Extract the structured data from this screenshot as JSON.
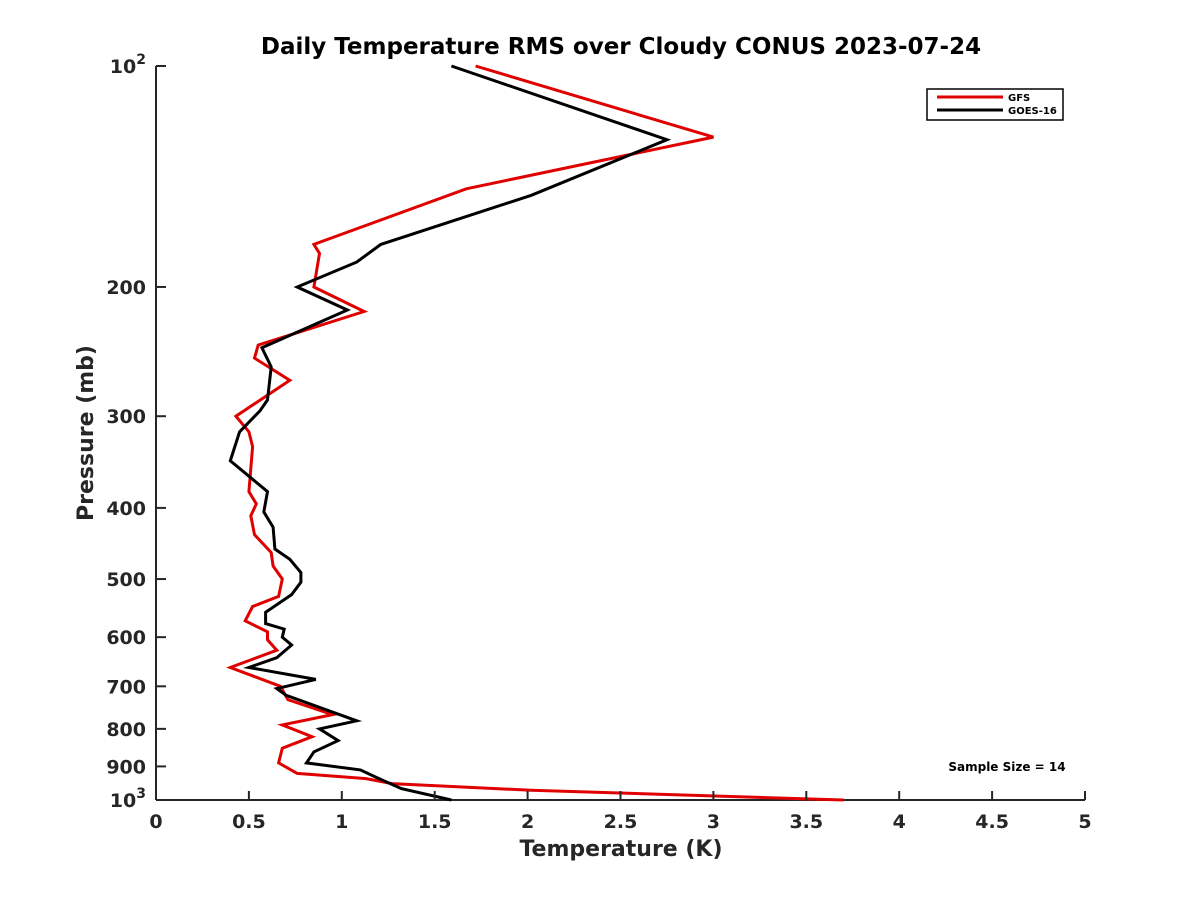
{
  "chart_data": {
    "type": "line",
    "title": "Daily Temperature RMS over Cloudy CONUS 2023-07-24",
    "xlabel": "Temperature (K)",
    "ylabel": "Pressure (mb)",
    "xlim": [
      0,
      5
    ],
    "ylim": [
      1000,
      100
    ],
    "yscale": "log",
    "y_reversed": true,
    "grid": false,
    "legend_position": "top-right",
    "x_ticks": [
      {
        "value": 0,
        "label": "0"
      },
      {
        "value": 0.5,
        "label": "0.5"
      },
      {
        "value": 1,
        "label": "1"
      },
      {
        "value": 1.5,
        "label": "1.5"
      },
      {
        "value": 2,
        "label": "2"
      },
      {
        "value": 2.5,
        "label": "2.5"
      },
      {
        "value": 3,
        "label": "3"
      },
      {
        "value": 3.5,
        "label": "3.5"
      },
      {
        "value": 4,
        "label": "4"
      },
      {
        "value": 4.5,
        "label": "4.5"
      },
      {
        "value": 5,
        "label": "5"
      }
    ],
    "y_ticks": [
      {
        "value": 100,
        "base": "10",
        "exp": "2"
      },
      {
        "value": 200,
        "label": "200"
      },
      {
        "value": 300,
        "label": "300"
      },
      {
        "value": 400,
        "label": "400"
      },
      {
        "value": 500,
        "label": "500"
      },
      {
        "value": 600,
        "label": "600"
      },
      {
        "value": 700,
        "label": "700"
      },
      {
        "value": 800,
        "label": "800"
      },
      {
        "value": 900,
        "label": "900"
      },
      {
        "value": 1000,
        "base": "10",
        "exp": "3"
      }
    ],
    "series": [
      {
        "name": "GFS",
        "color": "#e00000",
        "points": [
          {
            "x": 1.72,
            "y": 100
          },
          {
            "x": 3.0,
            "y": 125
          },
          {
            "x": 1.67,
            "y": 147
          },
          {
            "x": 0.85,
            "y": 175
          },
          {
            "x": 0.88,
            "y": 180
          },
          {
            "x": 0.85,
            "y": 200
          },
          {
            "x": 1.12,
            "y": 216
          },
          {
            "x": 0.55,
            "y": 240
          },
          {
            "x": 0.53,
            "y": 250
          },
          {
            "x": 0.72,
            "y": 268
          },
          {
            "x": 0.43,
            "y": 300
          },
          {
            "x": 0.5,
            "y": 315
          },
          {
            "x": 0.52,
            "y": 330
          },
          {
            "x": 0.5,
            "y": 380
          },
          {
            "x": 0.54,
            "y": 395
          },
          {
            "x": 0.51,
            "y": 410
          },
          {
            "x": 0.53,
            "y": 435
          },
          {
            "x": 0.62,
            "y": 460
          },
          {
            "x": 0.63,
            "y": 480
          },
          {
            "x": 0.68,
            "y": 500
          },
          {
            "x": 0.66,
            "y": 528
          },
          {
            "x": 0.52,
            "y": 545
          },
          {
            "x": 0.48,
            "y": 570
          },
          {
            "x": 0.6,
            "y": 590
          },
          {
            "x": 0.6,
            "y": 605
          },
          {
            "x": 0.65,
            "y": 625
          },
          {
            "x": 0.4,
            "y": 660
          },
          {
            "x": 0.67,
            "y": 700
          },
          {
            "x": 0.71,
            "y": 730
          },
          {
            "x": 0.95,
            "y": 765
          },
          {
            "x": 0.68,
            "y": 790
          },
          {
            "x": 0.84,
            "y": 820
          },
          {
            "x": 0.68,
            "y": 850
          },
          {
            "x": 0.66,
            "y": 890
          },
          {
            "x": 0.76,
            "y": 920
          },
          {
            "x": 1.13,
            "y": 935
          },
          {
            "x": 1.27,
            "y": 950
          },
          {
            "x": 2.02,
            "y": 970
          },
          {
            "x": 3.7,
            "y": 1000
          }
        ]
      },
      {
        "name": "GOES-16",
        "color": "#000000",
        "points": [
          {
            "x": 1.59,
            "y": 100
          },
          {
            "x": 2.75,
            "y": 126
          },
          {
            "x": 2.02,
            "y": 150
          },
          {
            "x": 1.21,
            "y": 175
          },
          {
            "x": 1.08,
            "y": 185
          },
          {
            "x": 0.76,
            "y": 200
          },
          {
            "x": 1.03,
            "y": 215
          },
          {
            "x": 0.57,
            "y": 242
          },
          {
            "x": 0.62,
            "y": 257
          },
          {
            "x": 0.6,
            "y": 285
          },
          {
            "x": 0.56,
            "y": 295
          },
          {
            "x": 0.45,
            "y": 315
          },
          {
            "x": 0.4,
            "y": 345
          },
          {
            "x": 0.6,
            "y": 380
          },
          {
            "x": 0.58,
            "y": 405
          },
          {
            "x": 0.63,
            "y": 425
          },
          {
            "x": 0.64,
            "y": 455
          },
          {
            "x": 0.72,
            "y": 470
          },
          {
            "x": 0.78,
            "y": 490
          },
          {
            "x": 0.78,
            "y": 505
          },
          {
            "x": 0.73,
            "y": 525
          },
          {
            "x": 0.59,
            "y": 555
          },
          {
            "x": 0.59,
            "y": 575
          },
          {
            "x": 0.69,
            "y": 585
          },
          {
            "x": 0.68,
            "y": 600
          },
          {
            "x": 0.73,
            "y": 615
          },
          {
            "x": 0.65,
            "y": 640
          },
          {
            "x": 0.5,
            "y": 660
          },
          {
            "x": 0.86,
            "y": 685
          },
          {
            "x": 0.65,
            "y": 705
          },
          {
            "x": 0.7,
            "y": 720
          },
          {
            "x": 1.08,
            "y": 780
          },
          {
            "x": 0.88,
            "y": 800
          },
          {
            "x": 0.98,
            "y": 830
          },
          {
            "x": 0.85,
            "y": 860
          },
          {
            "x": 0.81,
            "y": 890
          },
          {
            "x": 1.1,
            "y": 910
          },
          {
            "x": 1.2,
            "y": 935
          },
          {
            "x": 1.32,
            "y": 965
          },
          {
            "x": 1.59,
            "y": 1000
          }
        ]
      }
    ],
    "annotations": [
      {
        "text": "Sample Size = 14",
        "x": 4.5,
        "y": 900
      }
    ]
  }
}
